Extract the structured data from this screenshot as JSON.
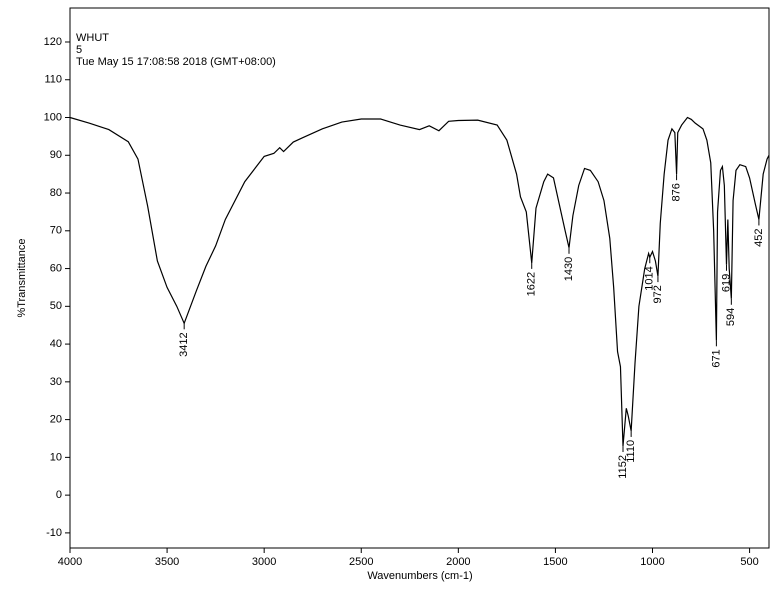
{
  "chart_data": {
    "type": "line",
    "text_lines": [
      "WHUT",
      "5",
      "Tue May 15 17:08:58 2018 (GMT+08:00)"
    ],
    "x_label": "Wavenumbers (cm-1)",
    "y_label": "%Transmittance",
    "xlim": [
      4000,
      400
    ],
    "ylim": [
      -14,
      129
    ],
    "xticks": [
      4000,
      3500,
      3000,
      2500,
      2000,
      1500,
      1000,
      500
    ],
    "yticks": [
      -10,
      0,
      10,
      20,
      30,
      40,
      50,
      60,
      70,
      80,
      90,
      100,
      110,
      120
    ],
    "grid": false,
    "x": [
      4000,
      3900,
      3800,
      3700,
      3650,
      3600,
      3550,
      3500,
      3450,
      3412,
      3350,
      3300,
      3250,
      3200,
      3100,
      3000,
      2950,
      2920,
      2900,
      2850,
      2800,
      2700,
      2600,
      2500,
      2400,
      2300,
      2200,
      2150,
      2100,
      2050,
      2000,
      1900,
      1800,
      1750,
      1700,
      1680,
      1650,
      1622,
      1600,
      1560,
      1540,
      1510,
      1480,
      1450,
      1430,
      1410,
      1380,
      1350,
      1320,
      1280,
      1250,
      1220,
      1200,
      1180,
      1165,
      1152,
      1135,
      1125,
      1110,
      1090,
      1070,
      1040,
      1020,
      1014,
      1000,
      985,
      972,
      960,
      940,
      920,
      900,
      885,
      876,
      870,
      850,
      820,
      800,
      780,
      740,
      720,
      700,
      685,
      671,
      665,
      650,
      640,
      630,
      619,
      612,
      605,
      594,
      585,
      570,
      550,
      520,
      500,
      470,
      452,
      430,
      410,
      400
    ],
    "series": [
      {
        "name": "5",
        "color": "#000000",
        "values": [
          100,
          98.5,
          96.8,
          93.6,
          89,
          76.5,
          62,
          55,
          50,
          45.5,
          54,
          60.6,
          66,
          73,
          83,
          89.7,
          90.5,
          92,
          91,
          93.5,
          94.7,
          97,
          98.8,
          99.6,
          99.6,
          98,
          96.8,
          97.8,
          96.5,
          99,
          99.2,
          99.3,
          98,
          94,
          85,
          79,
          75,
          61.5,
          76,
          83,
          85,
          84,
          77,
          70,
          65.5,
          74,
          82,
          86.5,
          86,
          83,
          78,
          68,
          55,
          38,
          34,
          13,
          23,
          21,
          17,
          35,
          50,
          60,
          64,
          63,
          64.5,
          62,
          58,
          72,
          85,
          94,
          97,
          96,
          85,
          96,
          98,
          100,
          99.5,
          98.5,
          97,
          94,
          88,
          70,
          41,
          75,
          86,
          87,
          82,
          61,
          73,
          60,
          52,
          78,
          86,
          87.5,
          87,
          84,
          77,
          73,
          85,
          89,
          90
        ]
      }
    ],
    "annotations": [
      3412,
      1622,
      1430,
      1152,
      1110,
      1014,
      972,
      876,
      671,
      619,
      594,
      452
    ]
  }
}
